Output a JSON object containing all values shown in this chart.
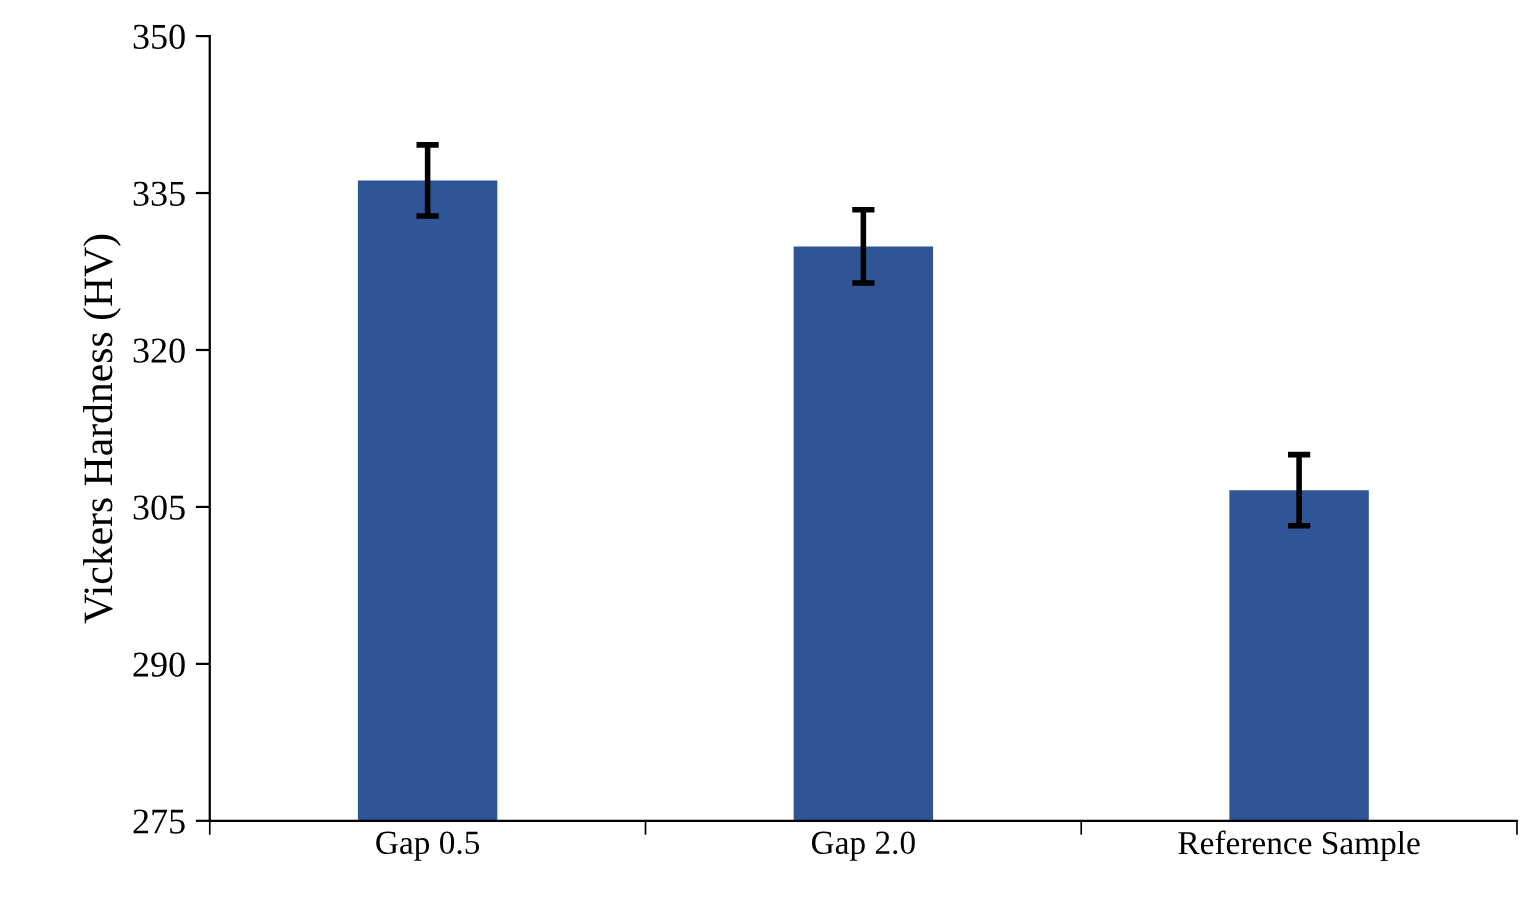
{
  "chart_data": {
    "type": "bar",
    "ylabel": "Vickers Hardness (HV)",
    "categories": [
      "Gap 0.5",
      "Gap 2.0",
      "Reference Sample"
    ],
    "values": [
      336.2,
      329.9,
      306.6
    ],
    "errors": [
      3.4,
      3.5,
      3.4
    ],
    "color": "#2f5597",
    "ylim": [
      275,
      350
    ],
    "yticks": [
      275,
      290,
      305,
      320,
      335,
      350
    ],
    "grid": false
  }
}
